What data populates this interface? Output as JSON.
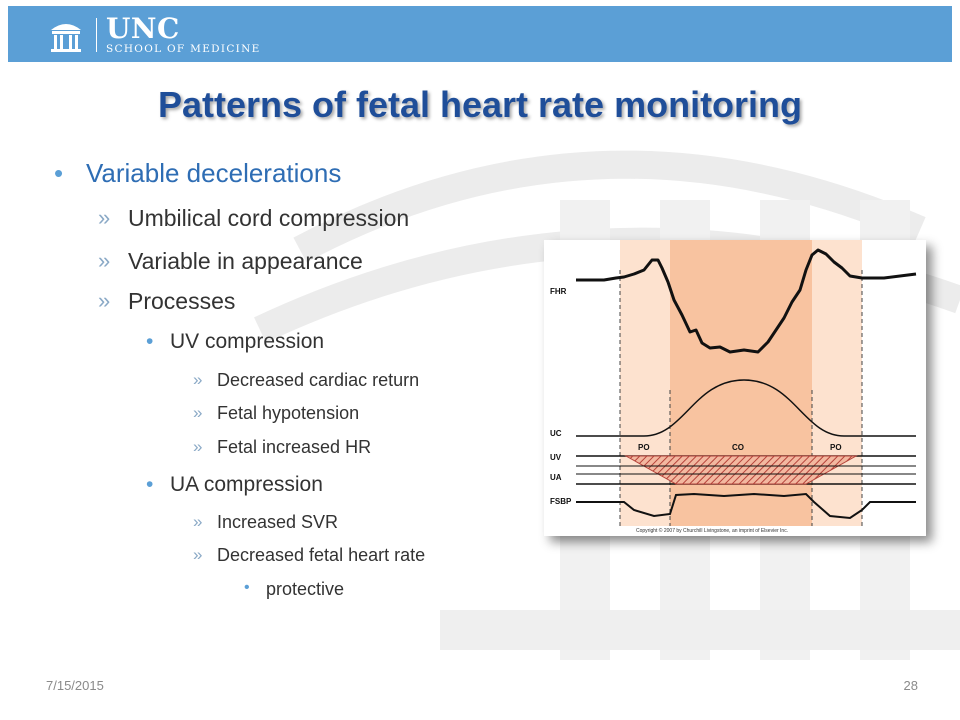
{
  "header": {
    "logo_unc": "UNC",
    "logo_school": "SCHOOL OF MEDICINE"
  },
  "title": "Patterns of fetal heart rate monitoring",
  "bullets": {
    "main": "Variable decelerations",
    "sub": [
      "Umbilical cord compression",
      "Variable in appearance",
      "Processes"
    ],
    "uv": {
      "label": "UV compression",
      "items": [
        "Decreased cardiac return",
        "Fetal hypotension",
        "Fetal increased HR"
      ]
    },
    "ua": {
      "label": "UA compression",
      "items": [
        "Increased SVR",
        "Decreased fetal heart rate"
      ],
      "note": "protective"
    },
    "markers": {
      "dot": "•",
      "arrow": "»"
    }
  },
  "figure": {
    "labels": {
      "fhr": "FHR",
      "uc": "UC",
      "uv": "UV",
      "ua": "UA",
      "fsbp": "FSBP"
    },
    "phases": {
      "po_left": "PO",
      "co": "CO",
      "po_right": "PO"
    },
    "copyright": "Copyright © 2007 by Churchill Livingstone, an imprint of Elsevier Inc."
  },
  "footer": {
    "date": "7/15/2015",
    "page": "28"
  },
  "colors": {
    "header_bar": "#5b9fd6",
    "title": "#1f4e99",
    "main_bullet": "#2e6db4",
    "phase_light": "#fde2cf",
    "phase_dark": "#f8c3a0",
    "hatch": "#b5433a"
  }
}
